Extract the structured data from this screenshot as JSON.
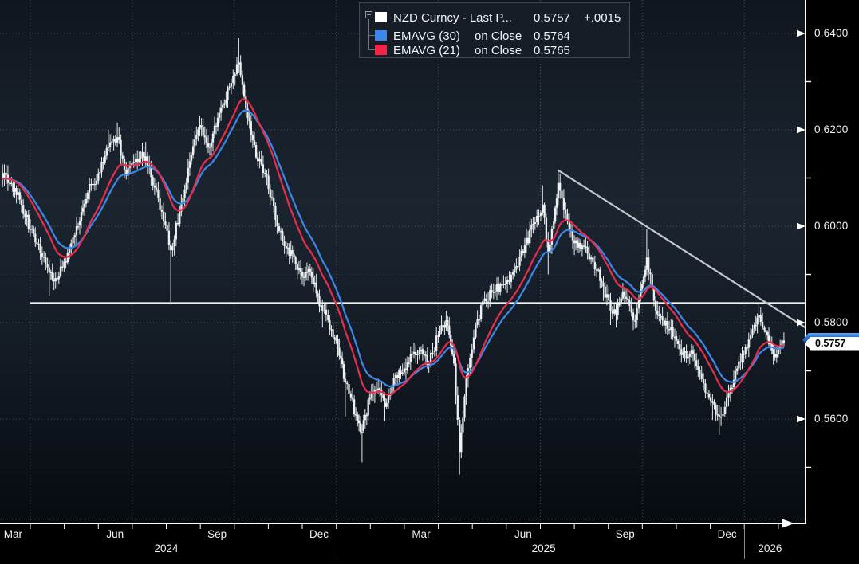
{
  "chart_data": {
    "type": "candlestick_with_ema_overlays",
    "title": "NZD Curncy - Last P...",
    "security": "NZD Curncy",
    "legend": {
      "rows": [
        {
          "swatch_color": "#ffffff",
          "name": "NZD Curncy - Last P...",
          "mid": "",
          "value": "0.5757",
          "change": "+.0015"
        },
        {
          "swatch_color": "#3d86ee",
          "name": "EMAVG (30)",
          "mid": "on Close",
          "value": "0.5764",
          "change": ""
        },
        {
          "swatch_color": "#f5224a",
          "name": "EMAVG (21)",
          "mid": "on Close",
          "value": "0.5765",
          "change": ""
        }
      ]
    },
    "y_axis": {
      "side": "right",
      "ticks": [
        {
          "label": "0.6400",
          "value": 0.64
        },
        {
          "label": "0.6200",
          "value": 0.62
        },
        {
          "label": "0.6000",
          "value": 0.6
        },
        {
          "label": "0.5800",
          "value": 0.58
        },
        {
          "label": "0.5600",
          "value": 0.56
        }
      ],
      "minor_ticks": [
        0.63,
        0.61,
        0.59,
        0.57,
        0.55
      ],
      "visible_range_top": 0.6469,
      "visible_range_bottom": 0.5383
    },
    "x_axis": {
      "month_labels": [
        {
          "text": "Mar",
          "date": "2024-03-16"
        },
        {
          "text": "Jun",
          "date": "2024-06-16"
        },
        {
          "text": "Sep",
          "date": "2024-09-16"
        },
        {
          "text": "Dec",
          "date": "2024-12-16"
        },
        {
          "text": "Mar",
          "date": "2025-03-16"
        },
        {
          "text": "Jun",
          "date": "2025-06-16"
        },
        {
          "text": "Sep",
          "date": "2025-09-16"
        },
        {
          "text": "Dec",
          "date": "2025-12-16"
        }
      ],
      "year_labels": [
        {
          "text": "2024",
          "date": "2024-08-01"
        },
        {
          "text": "2025",
          "date": "2025-07-04"
        },
        {
          "text": "2026",
          "date": "2026-01-24"
        }
      ],
      "year_dividers": [
        "2025-01-01",
        "2026-01-01"
      ],
      "grid_dates": [
        "2024-04-01",
        "2024-07-01",
        "2024-10-01",
        "2025-01-01",
        "2025-04-01",
        "2025-07-01",
        "2025-10-01",
        "2026-01-01"
      ],
      "range_start": "2024-03-05",
      "range_end": "2026-02-25"
    },
    "price_flag": {
      "value": "0.5757",
      "price": 0.5757
    },
    "ema_flag": {
      "price": 0.5764
    },
    "series": [
      {
        "name": "NZD Curncy - Last Price",
        "style": "ohlc_bars",
        "last": 0.5757,
        "change": "+.0015"
      },
      {
        "name": "EMAVG (30) on Close",
        "style": "line",
        "period": 30,
        "last": 0.5764
      },
      {
        "name": "EMAVG (21) on Close",
        "style": "line",
        "period": 21,
        "last": 0.5765
      }
    ],
    "annotations": {
      "support_line": {
        "price": 0.5841,
        "from": "2024-04-01",
        "to": "2026-02-25"
      },
      "trend_line": {
        "from": {
          "date": "2025-07-17",
          "price": 0.6116
        },
        "to": {
          "date": "2026-02-25",
          "price": 0.579
        }
      }
    },
    "anchor_format": [
      "date",
      "close",
      "spike_low_or_null",
      "spike_high_or_null"
    ],
    "anchors": [
      [
        "2024-03-05",
        0.611,
        null,
        null
      ],
      [
        "2024-03-13",
        0.609,
        null,
        null
      ],
      [
        "2024-03-22",
        0.6055,
        null,
        null
      ],
      [
        "2024-04-01",
        0.5995,
        null,
        null
      ],
      [
        "2024-04-10",
        0.5945,
        null,
        null
      ],
      [
        "2024-04-18",
        0.5905,
        0.5855,
        null
      ],
      [
        "2024-04-25",
        0.589,
        null,
        null
      ],
      [
        "2024-05-04",
        0.5945,
        null,
        null
      ],
      [
        "2024-05-12",
        0.6,
        null,
        null
      ],
      [
        "2024-05-22",
        0.607,
        null,
        null
      ],
      [
        "2024-06-01",
        0.611,
        null,
        null
      ],
      [
        "2024-06-10",
        0.6165,
        null,
        0.62
      ],
      [
        "2024-06-18",
        0.6185,
        null,
        0.6215
      ],
      [
        "2024-06-26",
        0.6105,
        null,
        null
      ],
      [
        "2024-07-04",
        0.614,
        null,
        null
      ],
      [
        "2024-07-13",
        0.6145,
        null,
        0.6175
      ],
      [
        "2024-07-21",
        0.608,
        null,
        null
      ],
      [
        "2024-07-29",
        0.601,
        null,
        null
      ],
      [
        "2024-08-05",
        0.595,
        0.5843,
        null
      ],
      [
        "2024-08-13",
        0.603,
        null,
        null
      ],
      [
        "2024-08-22",
        0.6135,
        null,
        null
      ],
      [
        "2024-08-31",
        0.621,
        null,
        null
      ],
      [
        "2024-09-08",
        0.6165,
        null,
        null
      ],
      [
        "2024-09-18",
        0.6235,
        null,
        null
      ],
      [
        "2024-09-27",
        0.629,
        null,
        null
      ],
      [
        "2024-10-05",
        0.634,
        null,
        0.639
      ],
      [
        "2024-10-13",
        0.6225,
        null,
        null
      ],
      [
        "2024-10-22",
        0.6135,
        null,
        null
      ],
      [
        "2024-10-30",
        0.6105,
        null,
        null
      ],
      [
        "2024-11-09",
        0.6,
        null,
        null
      ],
      [
        "2024-11-17",
        0.5955,
        null,
        null
      ],
      [
        "2024-11-24",
        0.5935,
        null,
        null
      ],
      [
        "2024-12-01",
        0.5895,
        null,
        null
      ],
      [
        "2024-12-08",
        0.5905,
        null,
        null
      ],
      [
        "2024-12-15",
        0.5855,
        null,
        null
      ],
      [
        "2024-12-19",
        0.5825,
        0.579,
        null
      ],
      [
        "2024-12-24",
        0.5805,
        null,
        null
      ],
      [
        "2024-12-30",
        0.5765,
        null,
        null
      ],
      [
        "2025-01-05",
        0.5725,
        null,
        null
      ],
      [
        "2025-01-09",
        0.5675,
        0.5605,
        null
      ],
      [
        "2025-01-14",
        0.5645,
        null,
        null
      ],
      [
        "2025-01-20",
        0.5595,
        null,
        null
      ],
      [
        "2025-01-24",
        0.5575,
        0.551,
        null
      ],
      [
        "2025-01-31",
        0.5645,
        null,
        null
      ],
      [
        "2025-02-08",
        0.5665,
        null,
        null
      ],
      [
        "2025-02-14",
        0.5625,
        0.5595,
        null
      ],
      [
        "2025-02-22",
        0.5685,
        null,
        null
      ],
      [
        "2025-03-01",
        0.5705,
        null,
        null
      ],
      [
        "2025-03-08",
        0.5735,
        null,
        null
      ],
      [
        "2025-03-16",
        0.5745,
        null,
        null
      ],
      [
        "2025-03-23",
        0.5715,
        null,
        null
      ],
      [
        "2025-04-01",
        0.5775,
        null,
        null
      ],
      [
        "2025-04-08",
        0.5805,
        null,
        0.5825
      ],
      [
        "2025-04-15",
        0.5715,
        null,
        null
      ],
      [
        "2025-04-20",
        0.553,
        0.5485,
        null
      ],
      [
        "2025-04-26",
        0.5685,
        null,
        null
      ],
      [
        "2025-05-04",
        0.5795,
        null,
        null
      ],
      [
        "2025-05-12",
        0.585,
        null,
        null
      ],
      [
        "2025-05-20",
        0.5865,
        null,
        null
      ],
      [
        "2025-05-29",
        0.588,
        null,
        null
      ],
      [
        "2025-06-07",
        0.5905,
        null,
        null
      ],
      [
        "2025-06-16",
        0.5945,
        null,
        null
      ],
      [
        "2025-06-25",
        0.6005,
        null,
        null
      ],
      [
        "2025-07-03",
        0.6045,
        null,
        0.6085
      ],
      [
        "2025-07-08",
        0.5945,
        0.59,
        null
      ],
      [
        "2025-07-13",
        0.601,
        null,
        null
      ],
      [
        "2025-07-17",
        0.609,
        null,
        0.6116
      ],
      [
        "2025-07-22",
        0.6035,
        null,
        null
      ],
      [
        "2025-07-27",
        0.5995,
        null,
        null
      ],
      [
        "2025-08-01",
        0.5965,
        0.594,
        null
      ],
      [
        "2025-08-08",
        0.596,
        null,
        null
      ],
      [
        "2025-08-16",
        0.5935,
        null,
        null
      ],
      [
        "2025-08-21",
        0.591,
        null,
        null
      ],
      [
        "2025-08-27",
        0.5875,
        0.5845,
        null
      ],
      [
        "2025-09-03",
        0.5825,
        0.5795,
        null
      ],
      [
        "2025-09-08",
        0.5815,
        0.579,
        null
      ],
      [
        "2025-09-14",
        0.5865,
        null,
        null
      ],
      [
        "2025-09-20",
        0.5835,
        null,
        null
      ],
      [
        "2025-09-25",
        0.5805,
        0.5788,
        null
      ],
      [
        "2025-09-30",
        0.587,
        null,
        null
      ],
      [
        "2025-10-05",
        0.5935,
        null,
        0.5995
      ],
      [
        "2025-10-13",
        0.5825,
        null,
        null
      ],
      [
        "2025-10-19",
        0.5805,
        null,
        null
      ],
      [
        "2025-10-25",
        0.5785,
        null,
        null
      ],
      [
        "2025-10-30",
        0.5772,
        0.5748,
        null
      ],
      [
        "2025-11-04",
        0.5745,
        null,
        null
      ],
      [
        "2025-11-10",
        0.5725,
        null,
        null
      ],
      [
        "2025-11-16",
        0.5735,
        null,
        null
      ],
      [
        "2025-11-22",
        0.5695,
        null,
        null
      ],
      [
        "2025-11-27",
        0.5655,
        null,
        null
      ],
      [
        "2025-12-03",
        0.5635,
        0.5598,
        null
      ],
      [
        "2025-12-09",
        0.5605,
        0.5567,
        null
      ],
      [
        "2025-12-14",
        0.5625,
        null,
        null
      ],
      [
        "2025-12-19",
        0.5665,
        null,
        null
      ],
      [
        "2025-12-25",
        0.5705,
        null,
        null
      ],
      [
        "2025-12-31",
        0.5735,
        null,
        null
      ],
      [
        "2026-01-05",
        0.5765,
        null,
        null
      ],
      [
        "2026-01-10",
        0.5795,
        null,
        null
      ],
      [
        "2026-01-14",
        0.5815,
        null,
        0.5838
      ],
      [
        "2026-01-19",
        0.5785,
        null,
        null
      ],
      [
        "2026-01-23",
        0.5755,
        null,
        null
      ],
      [
        "2026-01-27",
        0.5735,
        0.5713,
        null
      ],
      [
        "2026-02-01",
        0.5745,
        null,
        null
      ],
      [
        "2026-02-06",
        0.5757,
        null,
        null
      ]
    ],
    "colors": {
      "background_top": "#10161e",
      "background_mid": "#1b2530",
      "background_low": "#151d27",
      "background_bottom": "#070b10",
      "outer_background": "#000000",
      "grid": "#9aa4ad",
      "axis": "#ffffff",
      "bars": "#edf1f4",
      "ema30": "#3f87e6",
      "ema21": "#e92e4d",
      "trendline": "#c4c8cc",
      "support": "#f5f5f5",
      "flag_bg": "#ffffff",
      "flag_text": "#000000",
      "flag_blue": "#2a6fd4",
      "label_text": "#eef2f6",
      "legend_bg": "#161d26",
      "legend_border": "#3f4a57"
    }
  }
}
